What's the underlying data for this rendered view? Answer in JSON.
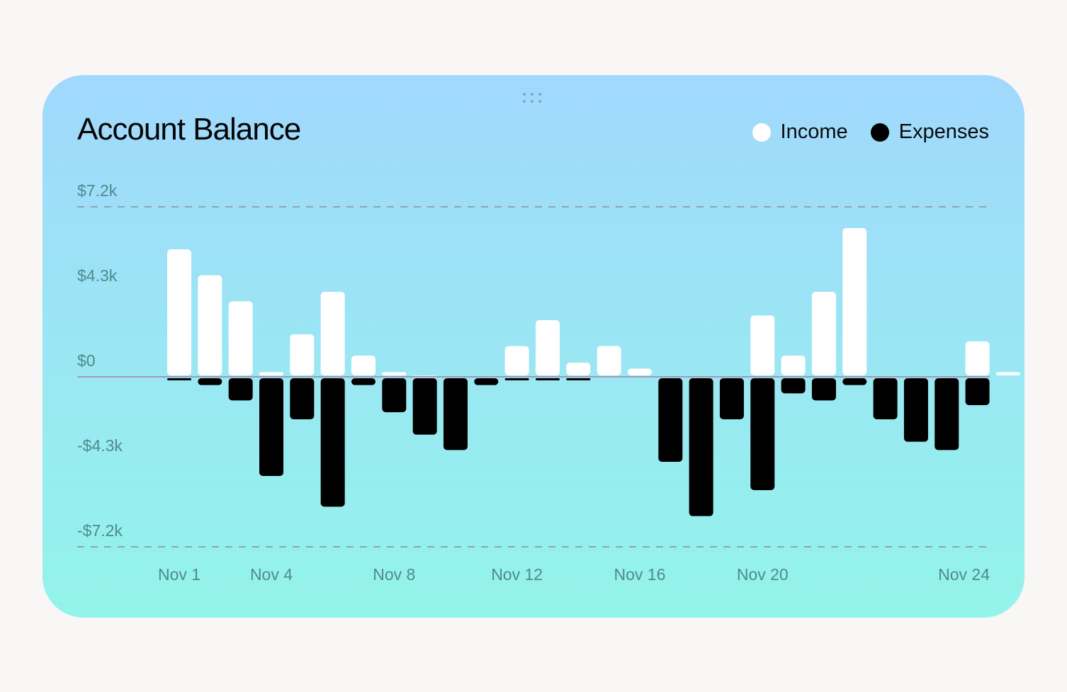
{
  "chart_data": {
    "type": "bar",
    "title": "Account Balance",
    "legend": {
      "position": "top-right",
      "entries": [
        {
          "name": "Income",
          "color": "#ffffff"
        },
        {
          "name": "Expenses",
          "color": "#000000"
        }
      ]
    },
    "yticks": [
      "$7.2k",
      "$4.3k",
      "$0",
      "-$4.3k",
      "-$7.2k"
    ],
    "ylim": [
      -7.2,
      7.2
    ],
    "y_unit": "thousands USD",
    "xticks": [
      {
        "label": "Nov 1",
        "day": 1
      },
      {
        "label": "Nov 4",
        "day": 4
      },
      {
        "label": "Nov 8",
        "day": 8
      },
      {
        "label": "Nov 12",
        "day": 12
      },
      {
        "label": "Nov 16",
        "day": 16
      },
      {
        "label": "Nov 20",
        "day": 20
      },
      {
        "label": "Nov 24",
        "day": 24
      }
    ],
    "categories": [
      "Nov 1",
      "Nov 2",
      "Nov 3",
      "Nov 4",
      "Nov 5",
      "Nov 6",
      "Nov 7",
      "Nov 8",
      "Nov 9",
      "Nov 10",
      "Nov 11",
      "Nov 12",
      "Nov 13",
      "Nov 14",
      "Nov 15",
      "Nov 16",
      "Nov 17",
      "Nov 18",
      "Nov 19",
      "Nov 20",
      "Nov 21",
      "Nov 22",
      "Nov 23",
      "Nov 24",
      "Nov 25",
      "Nov 26",
      "Nov 27",
      "Nov 28"
    ],
    "series": [
      {
        "name": "Income",
        "values": [
          5.4,
          4.3,
          3.2,
          0.2,
          1.8,
          3.6,
          0.9,
          0.2,
          0.05,
          0,
          0,
          1.3,
          2.4,
          0.6,
          1.3,
          0.35,
          0,
          0,
          0,
          2.6,
          0.9,
          3.6,
          6.3,
          0,
          0,
          0,
          1.5,
          0.2
        ]
      },
      {
        "name": "Expenses",
        "values": [
          -0.15,
          -0.35,
          -1.0,
          -4.2,
          -1.8,
          -5.5,
          -0.35,
          -1.5,
          -2.45,
          -3.1,
          -0.35,
          -0.1,
          -0.15,
          -0.15,
          0,
          0,
          -3.6,
          -5.9,
          -1.8,
          -4.8,
          -0.7,
          -1.0,
          -0.35,
          -1.8,
          -2.75,
          -3.1,
          -1.2,
          0
        ]
      }
    ],
    "grid": {
      "dashed_lines_at": [
        7.2,
        -7.2
      ],
      "zero_line": true
    }
  }
}
